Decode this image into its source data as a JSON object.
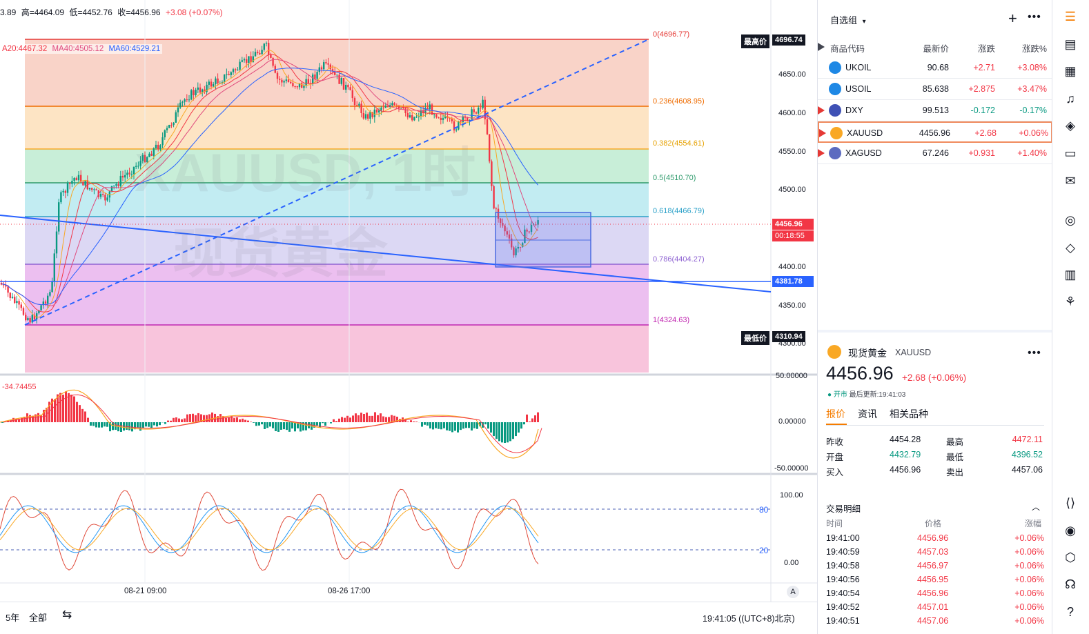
{
  "chart": {
    "ohlc": {
      "open_partial": "3.89",
      "high_label": "高=",
      "high": "4464.09",
      "low_label": "低=",
      "low": "4452.76",
      "close_label": "收=",
      "close": "4456.96",
      "change": "+3.08 (+0.07%)"
    },
    "ma_legend": {
      "ma20": "A20:4467.32",
      "ma40": "MA40:4505.12",
      "ma60": "MA60:4529.21"
    },
    "watermark_symbol": "XAUUSD, 1时",
    "watermark_name": "现货黄金",
    "fib_levels": [
      {
        "label": "0(4696.77)",
        "color": "#e53935"
      },
      {
        "label": "0.236(4608.95)",
        "color": "#ef6c00"
      },
      {
        "label": "0.382(4554.61)",
        "color": "#f9a825"
      },
      {
        "label": "0.5(4510.70)",
        "color": "#2e9a6b"
      },
      {
        "label": "0.618(4466.79)",
        "color": "#2aa0c8"
      },
      {
        "label": "0.786(4404.27)",
        "color": "#8e63d2"
      },
      {
        "label": "1(4324.63)",
        "color": "#c026b0"
      }
    ],
    "price_axis": [
      "4650.00",
      "4600.00",
      "4550.00",
      "4500.00",
      "4400.00",
      "4350.00",
      "4300.00"
    ],
    "high_badge": {
      "label": "最高价",
      "value": "4696.74"
    },
    "low_badge": {
      "label": "最低价",
      "value": "4310.94"
    },
    "current_price": "4456.96",
    "countdown": "00:18:55",
    "line_price": "4381.78",
    "macd": {
      "value": "-34.74455",
      "axis": [
        "50.00000",
        "0.00000",
        "-50.00000"
      ]
    },
    "stoch": {
      "axis": [
        "100.00",
        "0.00"
      ],
      "level_high": "80",
      "level_low": "20"
    },
    "time_axis": [
      "08-21 09:00",
      "08-26 17:00"
    ],
    "auto_label": "A",
    "bottom": {
      "range1": "5年",
      "range2": "全部",
      "clock": "19:41:05 ((UTC+8)北京)"
    }
  },
  "watchlist": {
    "title": "自选组",
    "columns": [
      "商品代码",
      "最新价",
      "涨跌",
      "涨跌%"
    ],
    "rows": [
      {
        "symbol": "UKOIL",
        "last": "90.68",
        "change": "+2.71",
        "pct": "+3.08%",
        "dir": "up",
        "flag": false,
        "icon_color": "#1e88e5"
      },
      {
        "symbol": "USOIL",
        "last": "85.638",
        "change": "+2.875",
        "pct": "+3.47%",
        "dir": "up",
        "flag": false,
        "icon_color": "#1e88e5"
      },
      {
        "symbol": "DXY",
        "last": "99.513",
        "change": "-0.172",
        "pct": "-0.17%",
        "dir": "down",
        "flag": true,
        "icon_color": "#3f51b5"
      },
      {
        "symbol": "XAUUSD",
        "last": "4456.96",
        "change": "+2.68",
        "pct": "+0.06%",
        "dir": "up",
        "flag": true,
        "icon_color": "#f9a825"
      },
      {
        "symbol": "XAGUSD",
        "last": "67.246",
        "change": "+0.931",
        "pct": "+1.40%",
        "dir": "up",
        "flag": true,
        "icon_color": "#5c6bc0"
      }
    ]
  },
  "detail": {
    "name": "现货黄金",
    "symbol": "XAUUSD",
    "price_main": "4456.96",
    "change": "+2.68 (+0.06%)",
    "status": "开市",
    "updated": "最后更新:19:41:03",
    "tabs": [
      "报价",
      "资讯",
      "相关品种"
    ],
    "quote": [
      {
        "l1": "昨收",
        "v1": "4454.28",
        "l2": "最高",
        "v2": "4472.11"
      },
      {
        "l1": "开盘",
        "v1": "4432.79",
        "l2": "最低",
        "v2": "4396.52"
      },
      {
        "l1": "买入",
        "v1": "4456.96",
        "l2": "卖出",
        "v2": "4457.06"
      }
    ],
    "trades_title": "交易明细",
    "trades_cols": [
      "时间",
      "价格",
      "涨幅"
    ],
    "trades": [
      {
        "t": "19:41:00",
        "p": "4456.96",
        "c": "+0.06%"
      },
      {
        "t": "19:40:59",
        "p": "4457.03",
        "c": "+0.06%"
      },
      {
        "t": "19:40:58",
        "p": "4456.97",
        "c": "+0.06%"
      },
      {
        "t": "19:40:56",
        "p": "4456.95",
        "c": "+0.06%"
      },
      {
        "t": "19:40:54",
        "p": "4456.96",
        "c": "+0.06%"
      },
      {
        "t": "19:40:52",
        "p": "4457.01",
        "c": "+0.06%"
      },
      {
        "t": "19:40:51",
        "p": "4457.06",
        "c": "+0.06%"
      }
    ]
  }
}
